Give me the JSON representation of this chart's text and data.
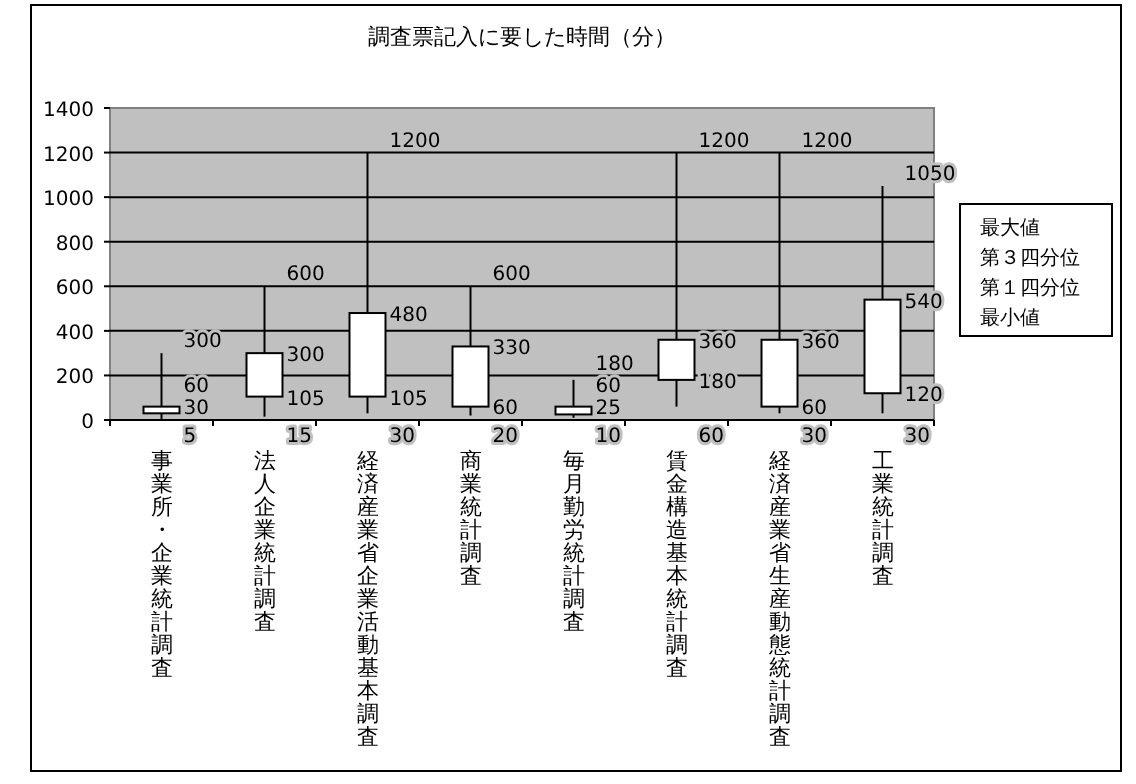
{
  "chart_data": {
    "type": "candlestick",
    "title": "調査票記入に要した時間（分）",
    "categories": [
      "事業所・企業統計調査",
      "法人企業統計調査",
      "経済産業省企業活動基本調査",
      "商業統計調査",
      "毎月勤労統計調査",
      "賃金構造基本統計調査",
      "経済産業省生産動態統計調査",
      "工業統計調査"
    ],
    "ohlc": [
      [
        30,
        300,
        5,
        60
      ],
      [
        105,
        600,
        15,
        300
      ],
      [
        105,
        1200,
        30,
        480
      ],
      [
        60,
        600,
        20,
        330
      ],
      [
        25,
        180,
        10,
        60
      ],
      [
        180,
        1200,
        60,
        360
      ],
      [
        60,
        1200,
        30,
        360
      ],
      [
        120,
        1050,
        30,
        540
      ]
    ],
    "ylim": [
      0,
      1400
    ],
    "yticks": [
      0,
      200,
      400,
      600,
      800,
      1000,
      1200,
      1400
    ],
    "grid": "y",
    "annotations": [
      "最大値",
      "第３四分位",
      "第１四分位",
      "最小値",
      {
        "text": "300",
        "x": "事業所・企業統計調査",
        "y": 300
      },
      {
        "text": "60",
        "x": "事業所・企業統計調査",
        "y": 60
      },
      {
        "text": "30",
        "x": "事業所・企業統計調査",
        "y": 30
      },
      {
        "text": "5",
        "x": "事業所・企業統計調査",
        "y": 5
      },
      {
        "text": "600",
        "x": "法人企業統計調査",
        "y": 600
      },
      {
        "text": "300",
        "x": "法人企業統計調査",
        "y": 300
      },
      {
        "text": "105",
        "x": "法人企業統計調査",
        "y": 105
      },
      {
        "text": "15",
        "x": "法人企業統計調査",
        "y": 15
      },
      {
        "text": "1200",
        "x": "経済産業省企業活動基本調査",
        "y": 1200
      },
      {
        "text": "480",
        "x": "経済産業省企業活動基本調査",
        "y": 480
      },
      {
        "text": "105",
        "x": "経済産業省企業活動基本調査",
        "y": 105
      },
      {
        "text": "30",
        "x": "経済産業省企業活動基本調査",
        "y": 30
      },
      {
        "text": "600",
        "x": "商業統計調査",
        "y": 600
      },
      {
        "text": "330",
        "x": "商業統計調査",
        "y": 330
      },
      {
        "text": "60",
        "x": "商業統計調査",
        "y": 60
      },
      {
        "text": "20",
        "x": "商業統計調査",
        "y": 20
      },
      {
        "text": "180",
        "x": "毎月勤労統計調査",
        "y": 180
      },
      {
        "text": "60",
        "x": "毎月勤労統計調査",
        "y": 60
      },
      {
        "text": "25",
        "x": "毎月勤労統計調査",
        "y": 25
      },
      {
        "text": "10",
        "x": "毎月勤労統計調査",
        "y": 10
      },
      {
        "text": "1200",
        "x": "賃金構造基本統計調査",
        "y": 1200
      },
      {
        "text": "360",
        "x": "賃金構造基本統計調査",
        "y": 360
      },
      {
        "text": "180",
        "x": "賃金構造基本統計調査",
        "y": 180
      },
      {
        "text": "60",
        "x": "賃金構造基本統計調査",
        "y": 60
      },
      {
        "text": "1200",
        "x": "経済産業省生産動態統計調査",
        "y": 1200
      },
      {
        "text": "360",
        "x": "経済産業省生産動態統計調査",
        "y": 360
      },
      {
        "text": "60",
        "x": "経済産業省生産動態統計調査",
        "y": 60
      },
      {
        "text": "30",
        "x": "経済産業省生産動態統計調査",
        "y": 30
      },
      {
        "text": "1050",
        "x": "工業統計調査",
        "y": 1050
      },
      {
        "text": "540",
        "x": "工業統計調査",
        "y": 540
      },
      {
        "text": "120",
        "x": "工業統計調査",
        "y": 120
      },
      {
        "text": "30",
        "x": "工業統計調査",
        "y": 30
      }
    ]
  }
}
